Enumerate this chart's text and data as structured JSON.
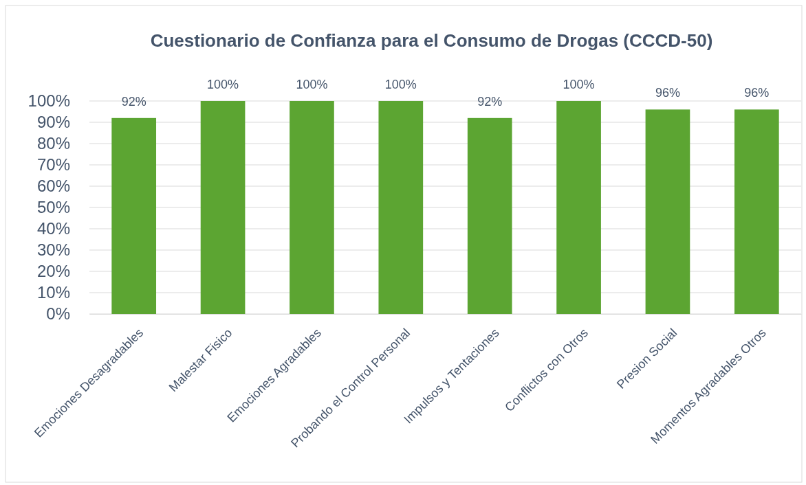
{
  "chart_data": {
    "type": "bar",
    "title": "Cuestionario de Confianza para el Consumo de Drogas (CCCD-50)",
    "categories": [
      "Emociones Desagradables",
      "Malestar Fisico",
      "Emociones Agradables",
      "Probando el Control Personal",
      "Impulsos y Tentaciones",
      "Conflictos con Otros",
      "Presion Social",
      "Momentos Agradables Otros"
    ],
    "values": [
      92,
      100,
      100,
      100,
      92,
      100,
      96,
      96
    ],
    "value_labels": [
      "92%",
      "100%",
      "100%",
      "100%",
      "92%",
      "100%",
      "96%",
      "96%"
    ],
    "color": "#5ca532",
    "ylim": [
      0,
      100
    ],
    "yticks": [
      {
        "value": 0,
        "label": "0%"
      },
      {
        "value": 10,
        "label": "10%"
      },
      {
        "value": 20,
        "label": "20%"
      },
      {
        "value": 30,
        "label": "30%"
      },
      {
        "value": 40,
        "label": "40%"
      },
      {
        "value": 50,
        "label": "50%"
      },
      {
        "value": 60,
        "label": "60%"
      },
      {
        "value": 70,
        "label": "70%"
      },
      {
        "value": 80,
        "label": "80%"
      },
      {
        "value": 90,
        "label": "90%"
      },
      {
        "value": 100,
        "label": "100%"
      }
    ],
    "grid": "y"
  }
}
